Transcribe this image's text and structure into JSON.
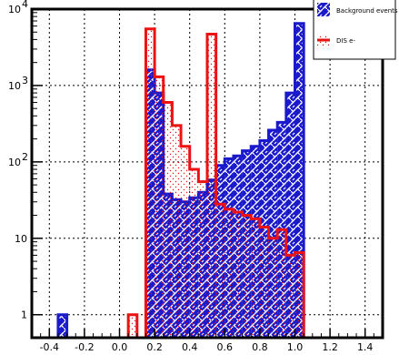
{
  "chart_data": {
    "type": "histogram",
    "title": "",
    "xlabel": "",
    "ylabel": "",
    "xlim": [
      -0.5,
      1.5
    ],
    "ylim": [
      0.5,
      10000
    ],
    "log_y": true,
    "grid": true,
    "x_ticks": [
      "-0.4",
      "-0.2",
      "0.0",
      "0.2",
      "0.4",
      "0.6",
      "0.8",
      "1.0",
      "1.2",
      "1.4"
    ],
    "y_ticks": [
      {
        "value": 1,
        "label": "1"
      },
      {
        "value": 10,
        "label": "10"
      },
      {
        "value": 100,
        "label": "10",
        "exp": "2"
      },
      {
        "value": 1000,
        "label": "10",
        "exp": "3"
      },
      {
        "value": 10000,
        "label": "10",
        "exp": "4"
      }
    ],
    "bin_edges": [
      -0.5,
      -0.45,
      -0.4,
      -0.35,
      -0.3,
      -0.25,
      -0.2,
      -0.15,
      -0.1,
      -0.05,
      0.0,
      0.05,
      0.1,
      0.15,
      0.2,
      0.25,
      0.3,
      0.35,
      0.4,
      0.45,
      0.5,
      0.55,
      0.6,
      0.65,
      0.7,
      0.75,
      0.8,
      0.85,
      0.9,
      0.95,
      1.0,
      1.05,
      1.1,
      1.15,
      1.2,
      1.25,
      1.3,
      1.35,
      1.4,
      1.45,
      1.5
    ],
    "legend_position": "top-right",
    "series": [
      {
        "name": "Background events",
        "color": "#1a1acc",
        "fill": "blue-white-weave",
        "values": [
          0,
          0,
          0,
          1,
          0,
          0,
          0,
          0,
          0,
          0,
          0,
          0,
          0,
          1600,
          800,
          38,
          32,
          30,
          34,
          40,
          58,
          90,
          110,
          120,
          140,
          160,
          190,
          260,
          330,
          800,
          6500,
          0,
          0,
          0,
          0,
          0,
          0,
          0,
          0,
          0
        ]
      },
      {
        "name": "DIS e-",
        "color": "#ee1111",
        "fill": "red-dots",
        "values": [
          0,
          0,
          0,
          0,
          0,
          0,
          0,
          0,
          0,
          0,
          0,
          1,
          0,
          5500,
          1300,
          600,
          300,
          160,
          80,
          55,
          4700,
          28,
          24,
          22,
          20,
          18,
          14,
          10,
          13,
          6,
          6.5,
          0,
          0,
          0,
          0,
          0,
          0,
          0,
          0,
          0
        ]
      }
    ]
  }
}
